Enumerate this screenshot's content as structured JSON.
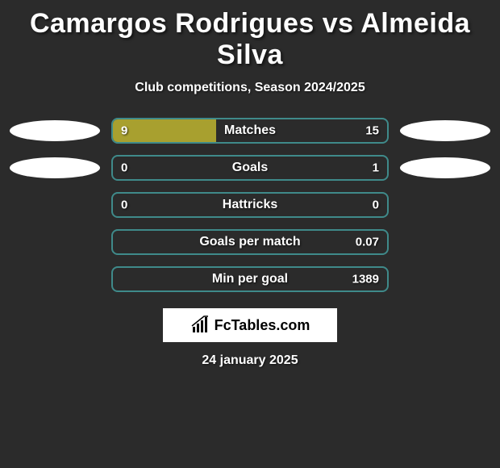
{
  "title": "Camargos Rodrigues vs Almeida Silva",
  "subtitle": "Club competitions, Season 2024/2025",
  "footer_brand": "FcTables.com",
  "footer_date": "24 january 2025",
  "colors": {
    "background": "#2b2b2b",
    "bar_fill_olive": "#a8a02f",
    "bar_border_teal": "#3f8a8a",
    "ellipse_white": "#ffffff",
    "text": "#ffffff"
  },
  "rows": [
    {
      "label": "Matches",
      "left_value": "9",
      "right_value": "15",
      "fill_pct": 37.5,
      "show_left_ellipse": true,
      "show_right_ellipse": true
    },
    {
      "label": "Goals",
      "left_value": "0",
      "right_value": "1",
      "fill_pct": 0,
      "left_value_outside_fill": true,
      "show_left_ellipse": true,
      "show_right_ellipse": true
    },
    {
      "label": "Hattricks",
      "left_value": "0",
      "right_value": "0",
      "fill_pct": 0,
      "show_left_ellipse": false,
      "show_right_ellipse": false
    },
    {
      "label": "Goals per match",
      "left_value": "",
      "right_value": "0.07",
      "fill_pct": 0,
      "show_left_ellipse": false,
      "show_right_ellipse": false
    },
    {
      "label": "Min per goal",
      "left_value": "",
      "right_value": "1389",
      "fill_pct": 0,
      "show_left_ellipse": false,
      "show_right_ellipse": false
    }
  ]
}
